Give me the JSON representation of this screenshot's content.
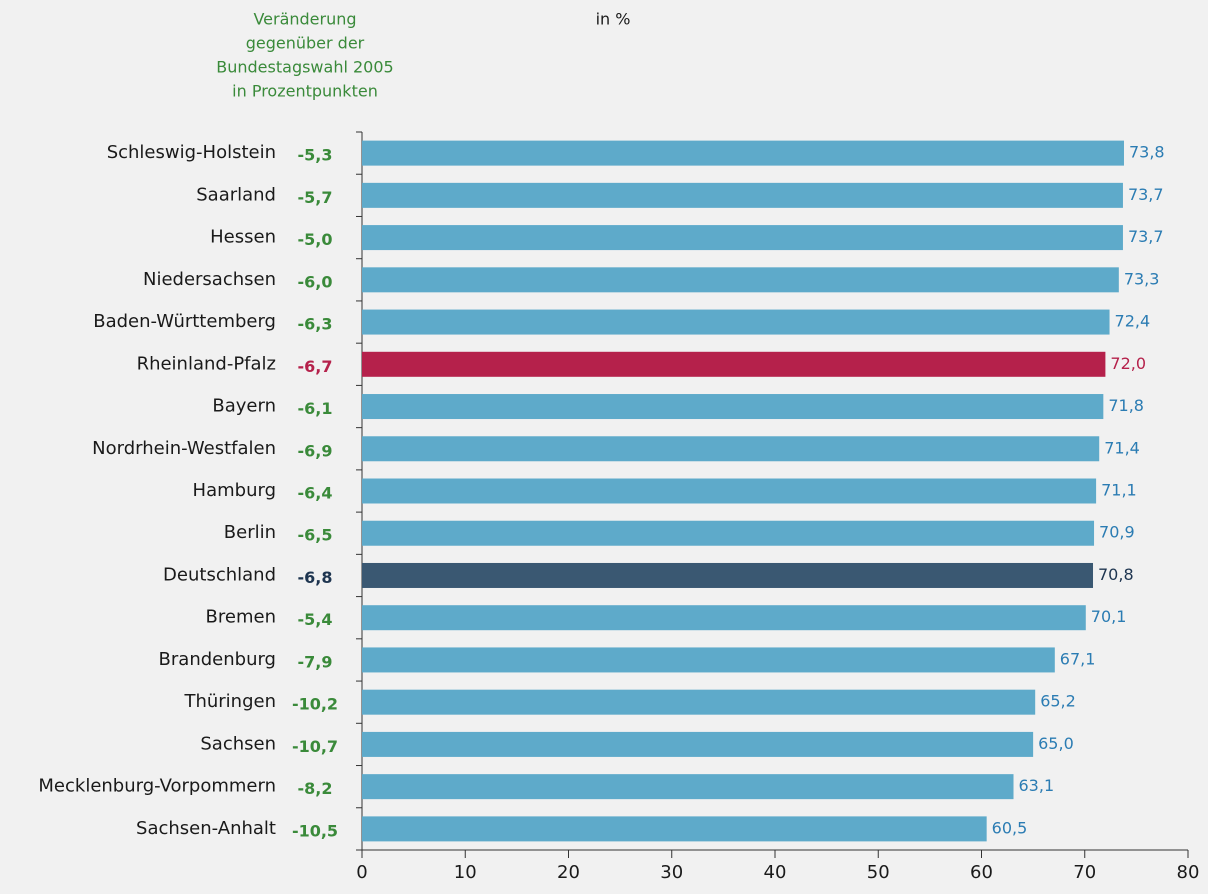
{
  "chart_data": {
    "type": "hbar",
    "subtitle": "in %",
    "change_title": [
      "Veränderung",
      "gegenüber der",
      "Bundestagswahl 2005",
      "in Prozentpunkten"
    ],
    "categories": [
      "Schleswig-Holstein",
      "Saarland",
      "Hessen",
      "Niedersachsen",
      "Baden-Württemberg",
      "Rheinland-Pfalz",
      "Bayern",
      "Nordrhein-Westfalen",
      "Hamburg",
      "Berlin",
      "Deutschland",
      "Bremen",
      "Brandenburg",
      "Thüringen",
      "Sachsen",
      "Mecklenburg-Vorpommern",
      "Sachsen-Anhalt"
    ],
    "values": [
      73.8,
      73.7,
      73.7,
      73.3,
      72.4,
      72.0,
      71.8,
      71.4,
      71.1,
      70.9,
      70.8,
      70.1,
      67.1,
      65.2,
      65.0,
      63.1,
      60.5
    ],
    "value_labels": [
      "73,8",
      "73,7",
      "73,7",
      "73,3",
      "72,4",
      "72,0",
      "71,8",
      "71,4",
      "71,1",
      "70,9",
      "70,8",
      "70,1",
      "67,1",
      "65,2",
      "65,0",
      "63,1",
      "60,5"
    ],
    "colors": [
      "#5eaaca",
      "#5eaaca",
      "#5eaaca",
      "#5eaaca",
      "#5eaaca",
      "#b5214b",
      "#5eaaca",
      "#5eaaca",
      "#5eaaca",
      "#5eaaca",
      "#3a5872",
      "#5eaaca",
      "#5eaaca",
      "#5eaaca",
      "#5eaaca",
      "#5eaaca",
      "#5eaaca"
    ],
    "label_colors": [
      "#2b7cb3",
      "#2b7cb3",
      "#2b7cb3",
      "#2b7cb3",
      "#2b7cb3",
      "#b5214b",
      "#2b7cb3",
      "#2b7cb3",
      "#2b7cb3",
      "#2b7cb3",
      "#1e3550",
      "#2b7cb3",
      "#2b7cb3",
      "#2b7cb3",
      "#2b7cb3",
      "#2b7cb3",
      "#2b7cb3"
    ],
    "change_values": [
      -5.3,
      -5.7,
      -5.0,
      -6.0,
      -6.3,
      -6.7,
      -6.1,
      -6.9,
      -6.4,
      -6.5,
      -6.8,
      -5.4,
      -7.9,
      -10.2,
      -10.7,
      -8.2,
      -10.5
    ],
    "change_value_labels": [
      "-5,3",
      "-5,7",
      "-5,0",
      "-6,0",
      "-6,3",
      "-6,7",
      "-6,1",
      "-6,9",
      "-6,4",
      "-6,5",
      "-6,8",
      "-5,4",
      "-7,9",
      "-10,2",
      "-10,7",
      "-8,2",
      "-10,5"
    ],
    "change_colors": [
      "#3a8a3a",
      "#3a8a3a",
      "#3a8a3a",
      "#3a8a3a",
      "#3a8a3a",
      "#b5214b",
      "#3a8a3a",
      "#3a8a3a",
      "#3a8a3a",
      "#3a8a3a",
      "#1e3550",
      "#3a8a3a",
      "#3a8a3a",
      "#3a8a3a",
      "#3a8a3a",
      "#3a8a3a",
      "#3a8a3a"
    ],
    "change_title_color": "#3a8a3a",
    "xlim": [
      0,
      80
    ],
    "xticks": [
      0,
      10,
      20,
      30,
      40,
      50,
      60,
      70,
      80
    ]
  }
}
